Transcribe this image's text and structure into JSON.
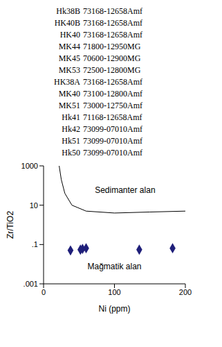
{
  "sample_list": {
    "rows": [
      [
        "Hk38B",
        "73168-12658Amf"
      ],
      [
        "HK40B",
        "73168-12658Amf"
      ],
      [
        "HK40",
        "73168-12658Amf"
      ],
      [
        "MK44",
        "71800-12950MG"
      ],
      [
        "MK45",
        "70600-12900MG"
      ],
      [
        "MK53",
        "72500-12800MG"
      ],
      [
        "HK38A",
        "73168-12658Amf"
      ],
      [
        "MK40",
        "73100-12800Amf"
      ],
      [
        "MK51",
        "73000-12750Amf"
      ],
      [
        "Hk41",
        "71168-12658Amf"
      ],
      [
        "Hk42",
        "73099-07010Amf"
      ],
      [
        "Hk51",
        "73099-07010Amf"
      ],
      [
        "Hk50",
        "73099-07010Amf"
      ]
    ]
  },
  "chart_data": {
    "type": "scatter",
    "x_label": "Ni (ppm)",
    "y_label": "Zr/TiO2",
    "xlim": [
      0,
      200
    ],
    "xticks": [
      0,
      100,
      200
    ],
    "ylim": [
      0.001,
      1000
    ],
    "yticks": [
      1000,
      10,
      {
        "value": 0.1,
        "label": ".1"
      },
      {
        "value": 0.001,
        "label": ".001"
      }
    ],
    "log": "y",
    "series": [
      {
        "type": "line",
        "color": "#000000",
        "x": [
          22,
          25,
          30,
          40,
          60,
          100,
          150,
          200
        ],
        "values": [
          1000,
          200,
          40,
          10,
          5,
          4,
          4.5,
          5
        ]
      },
      {
        "type": "scatter",
        "marker": "diamond",
        "color": "#1f1f7a",
        "x": [
          38,
          52,
          55,
          60,
          135,
          182
        ],
        "values": [
          0.05,
          0.055,
          0.06,
          0.065,
          0.055,
          0.065
        ]
      }
    ],
    "annotations": [
      {
        "text": "Sedimanter alan",
        "x": 115,
        "y": 60
      },
      {
        "text": "Mağmatik alan",
        "x": 100,
        "y": 0.008
      }
    ]
  }
}
